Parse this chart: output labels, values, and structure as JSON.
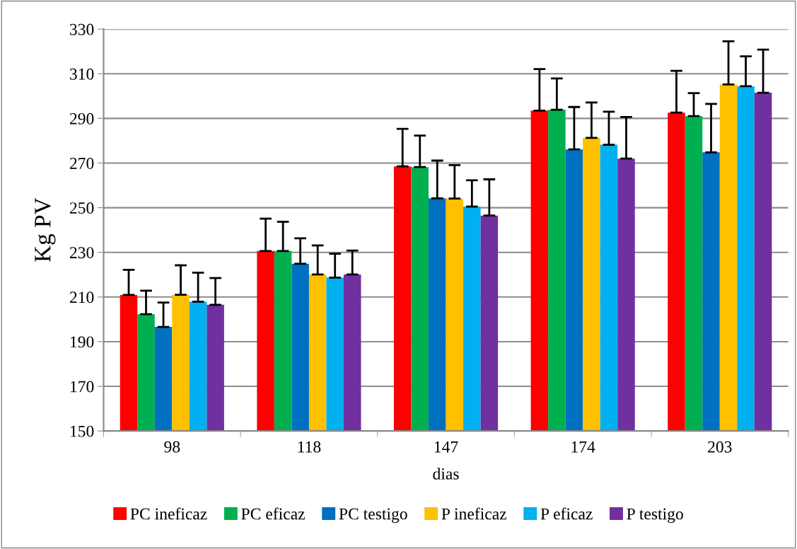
{
  "chart_data": {
    "type": "bar",
    "xlabel": "dias",
    "ylabel": "Kg PV",
    "categories": [
      "98",
      "118",
      "147",
      "174",
      "203"
    ],
    "series": [
      {
        "name": "PC ineficaz",
        "color": "#ff0000",
        "values": [
          210.9,
          230.6,
          268.5,
          293.5,
          292.6
        ],
        "errors": [
          [
            210.9,
            222.2
          ],
          [
            230.6,
            245.1
          ],
          [
            268.5,
            285.3
          ],
          [
            293.5,
            312.1
          ],
          [
            292.6,
            311.3
          ]
        ]
      },
      {
        "name": "PC eficaz",
        "color": "#00b050",
        "values": [
          202.3,
          230.6,
          268.2,
          293.9,
          291.0
        ],
        "errors": [
          [
            202.3,
            212.8
          ],
          [
            230.6,
            243.7
          ],
          [
            268.2,
            282.3
          ],
          [
            293.9,
            307.9
          ],
          [
            291.0,
            301.3
          ]
        ]
      },
      {
        "name": "PC testigo",
        "color": "#0070c0",
        "values": [
          196.6,
          224.9,
          254.2,
          276.1,
          274.8
        ],
        "errors": [
          [
            196.6,
            207.5
          ],
          [
            224.9,
            236.3
          ],
          [
            254.2,
            271.1
          ],
          [
            276.1,
            295.1
          ],
          [
            274.8,
            296.5
          ]
        ]
      },
      {
        "name": "P ineficaz",
        "color": "#ffc000",
        "values": [
          211.0,
          220.1,
          254.1,
          281.3,
          305.2
        ],
        "errors": [
          [
            211.0,
            224.2
          ],
          [
            220.1,
            233.1
          ],
          [
            254.1,
            269.1
          ],
          [
            281.3,
            297.1
          ],
          [
            305.2,
            324.5
          ]
        ]
      },
      {
        "name": "P eficaz",
        "color": "#00b0f0",
        "values": [
          207.9,
          218.7,
          250.5,
          278.2,
          304.4
        ],
        "errors": [
          [
            207.9,
            220.9
          ],
          [
            218.7,
            229.4
          ],
          [
            250.5,
            262.3
          ],
          [
            278.2,
            293.0
          ],
          [
            304.4,
            317.8
          ]
        ]
      },
      {
        "name": "P testigo",
        "color": "#7030a0",
        "values": [
          206.5,
          220.1,
          246.5,
          272.0,
          301.5
        ],
        "errors": [
          [
            206.5,
            218.5
          ],
          [
            220.1,
            230.8
          ],
          [
            246.5,
            262.7
          ],
          [
            272.0,
            290.6
          ],
          [
            301.5,
            320.8
          ]
        ]
      }
    ],
    "ylim": [
      150,
      330
    ],
    "yticks": [
      150,
      170,
      190,
      210,
      230,
      250,
      270,
      290,
      310,
      330
    ],
    "grid": "y",
    "legend": "bottom"
  }
}
